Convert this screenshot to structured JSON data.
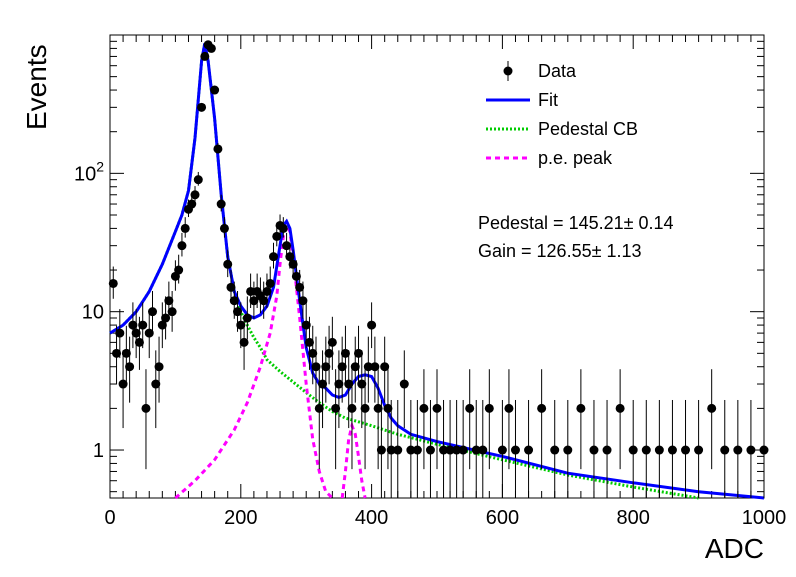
{
  "chart_data": {
    "type": "scatter",
    "xlabel": "ADC",
    "ylabel": "Events",
    "xlim": [
      0,
      1000
    ],
    "ylim": [
      0.45,
      1000
    ],
    "y_scale": "log",
    "grid": false,
    "legend_position": "top-right",
    "x_ticks": [
      {
        "v": 0,
        "label": "0"
      },
      {
        "v": 200,
        "label": "200"
      },
      {
        "v": 400,
        "label": "400"
      },
      {
        "v": 600,
        "label": "600"
      },
      {
        "v": 800,
        "label": "800"
      },
      {
        "v": 1000,
        "label": "1000"
      }
    ],
    "y_ticks": [
      {
        "v": 1,
        "label": "1"
      },
      {
        "v": 10,
        "label": "10"
      },
      {
        "v": 100,
        "label": "10",
        "sup": "2"
      }
    ],
    "legend": [
      {
        "label": "Data",
        "style": "marker",
        "color": "#000000"
      },
      {
        "label": "Fit",
        "style": "solid",
        "color": "#0000ff"
      },
      {
        "label": "Pedestal CB",
        "style": "dotted",
        "color": "#00cc00"
      },
      {
        "label": "p.e. peak",
        "style": "dashed",
        "color": "#ff00ff"
      }
    ],
    "annotations": {
      "pedestal": "Pedestal = 145.21± 0.14",
      "gain": "Gain = 126.55± 1.13"
    },
    "series": [
      {
        "name": "Data",
        "kind": "points",
        "color": "#000000",
        "x": [
          5,
          10,
          15,
          20,
          25,
          30,
          35,
          40,
          45,
          50,
          55,
          60,
          65,
          70,
          75,
          80,
          85,
          90,
          95,
          100,
          105,
          110,
          115,
          120,
          125,
          130,
          135,
          140,
          145,
          150,
          155,
          160,
          165,
          170,
          175,
          180,
          185,
          190,
          195,
          200,
          205,
          210,
          215,
          220,
          225,
          230,
          235,
          240,
          245,
          250,
          255,
          260,
          265,
          270,
          275,
          280,
          285,
          290,
          295,
          300,
          305,
          310,
          315,
          320,
          325,
          330,
          335,
          340,
          345,
          350,
          355,
          360,
          365,
          370,
          375,
          380,
          385,
          390,
          395,
          400,
          405,
          410,
          415,
          420,
          425,
          430,
          440,
          450,
          460,
          470,
          480,
          490,
          500,
          510,
          520,
          530,
          540,
          550,
          560,
          570,
          580,
          600,
          610,
          620,
          640,
          660,
          680,
          700,
          720,
          740,
          760,
          780,
          800,
          820,
          840,
          860,
          880,
          900,
          920,
          940,
          960,
          980,
          1000
        ],
        "y": [
          16,
          5,
          7,
          3,
          5,
          4,
          8,
          7,
          6,
          8,
          2,
          7,
          10,
          3,
          4,
          8,
          9,
          12,
          10,
          18,
          20,
          30,
          40,
          55,
          60,
          70,
          90,
          300,
          700,
          850,
          800,
          400,
          150,
          60,
          40,
          22,
          15,
          12,
          10,
          8,
          6,
          9,
          14,
          12,
          14,
          13,
          12,
          14,
          16,
          25,
          35,
          42,
          40,
          30,
          25,
          22,
          18,
          15,
          12,
          8,
          6,
          5,
          4,
          2,
          3,
          4,
          5,
          6,
          2,
          3,
          4,
          5,
          3,
          2,
          4,
          5,
          3,
          2,
          4,
          8,
          4,
          2,
          1,
          4,
          2,
          1,
          1,
          3,
          1,
          1,
          2,
          1,
          2,
          1,
          1,
          1,
          1,
          2,
          1,
          1,
          2,
          1,
          2,
          1,
          1,
          2,
          1,
          1,
          2,
          1,
          1,
          2,
          1,
          1,
          1,
          1,
          1,
          1,
          2,
          1,
          1,
          1,
          1
        ]
      },
      {
        "name": "Fit",
        "kind": "line",
        "color": "#0000ff",
        "x": [
          0,
          20,
          40,
          60,
          80,
          100,
          110,
          120,
          130,
          140,
          145,
          150,
          160,
          170,
          180,
          190,
          200,
          210,
          220,
          230,
          240,
          250,
          260,
          265,
          270,
          275,
          280,
          290,
          300,
          310,
          320,
          330,
          340,
          350,
          360,
          370,
          380,
          390,
          400,
          410,
          420,
          430,
          440,
          460,
          500,
          600,
          700,
          800,
          900,
          1000
        ],
        "y": [
          7,
          8,
          10,
          14,
          22,
          38,
          50,
          75,
          180,
          650,
          870,
          650,
          250,
          70,
          25,
          14,
          11,
          9.5,
          9,
          9.5,
          11,
          15,
          30,
          42,
          45,
          40,
          28,
          12,
          5.5,
          3.6,
          3,
          2.8,
          2.5,
          2.4,
          2.5,
          3,
          3.4,
          3.5,
          3.4,
          2.8,
          2.1,
          1.7,
          1.5,
          1.3,
          1.15,
          0.9,
          0.68,
          0.58,
          0.5,
          0.45
        ]
      },
      {
        "name": "Pedestal CB",
        "kind": "line",
        "color": "#00cc00",
        "x": [
          0,
          20,
          40,
          60,
          80,
          100,
          110,
          120,
          130,
          140,
          145,
          150,
          160,
          170,
          180,
          190,
          200,
          210,
          220,
          230,
          240,
          260,
          280,
          300,
          320,
          340,
          360,
          380,
          400,
          440,
          500,
          600,
          700,
          800,
          900
        ],
        "y": [
          7,
          8,
          10,
          14,
          22,
          38,
          50,
          75,
          180,
          650,
          870,
          650,
          250,
          70,
          25,
          14,
          10,
          8,
          6.5,
          5.5,
          4.5,
          3.7,
          3.1,
          2.6,
          2.2,
          1.9,
          1.7,
          1.6,
          1.5,
          1.3,
          1.1,
          0.85,
          0.66,
          0.54,
          0.45
        ]
      },
      {
        "name": "p.e. peak",
        "kind": "line",
        "color": "#ff00ff",
        "segments": [
          {
            "x": [
              100,
              130,
              160,
              190,
              210,
              230,
              245,
              255,
              260,
              265,
              270,
              275,
              280,
              290,
              300,
              310,
              320,
              330,
              340
            ],
            "y": [
              0.45,
              0.6,
              0.85,
              1.4,
              2.2,
              4,
              7,
              13,
              22,
              35,
              42,
              38,
              25,
              9,
              3,
              1.2,
              0.7,
              0.5,
              0.45
            ]
          },
          {
            "x": [
              355,
              360,
              365,
              370,
              375,
              380,
              385,
              390
            ],
            "y": [
              0.45,
              0.7,
              1.2,
              1.5,
              1.3,
              0.9,
              0.6,
              0.45
            ]
          }
        ]
      }
    ]
  }
}
